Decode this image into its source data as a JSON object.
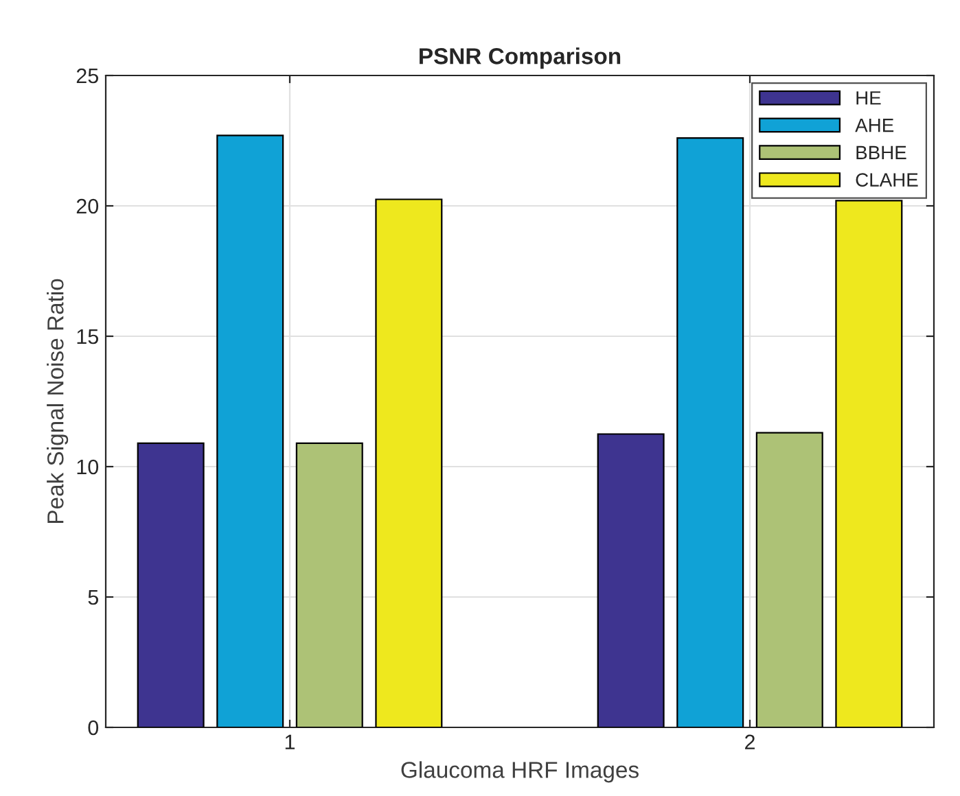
{
  "chart_data": {
    "type": "bar",
    "title": "PSNR Comparison",
    "xlabel": "Glaucoma HRF Images",
    "ylabel": "Peak Signal Noise Ratio",
    "x": [
      1,
      2
    ],
    "xlim": [
      0.6,
      2.4
    ],
    "xticks": [
      1,
      2
    ],
    "ylim": [
      0,
      25
    ],
    "yticks": [
      0,
      5,
      10,
      15,
      20,
      25
    ],
    "grid": true,
    "legend": "top right",
    "series": [
      {
        "name": "HE",
        "color": "#3e3490",
        "values": [
          10.9,
          11.25
        ]
      },
      {
        "name": "AHE",
        "color": "#10a2d6",
        "values": [
          22.7,
          22.6
        ]
      },
      {
        "name": "BBHE",
        "color": "#adc276",
        "values": [
          10.9,
          11.3
        ]
      },
      {
        "name": "CLAHE",
        "color": "#eee81e",
        "values": [
          20.25,
          20.2
        ]
      }
    ]
  }
}
